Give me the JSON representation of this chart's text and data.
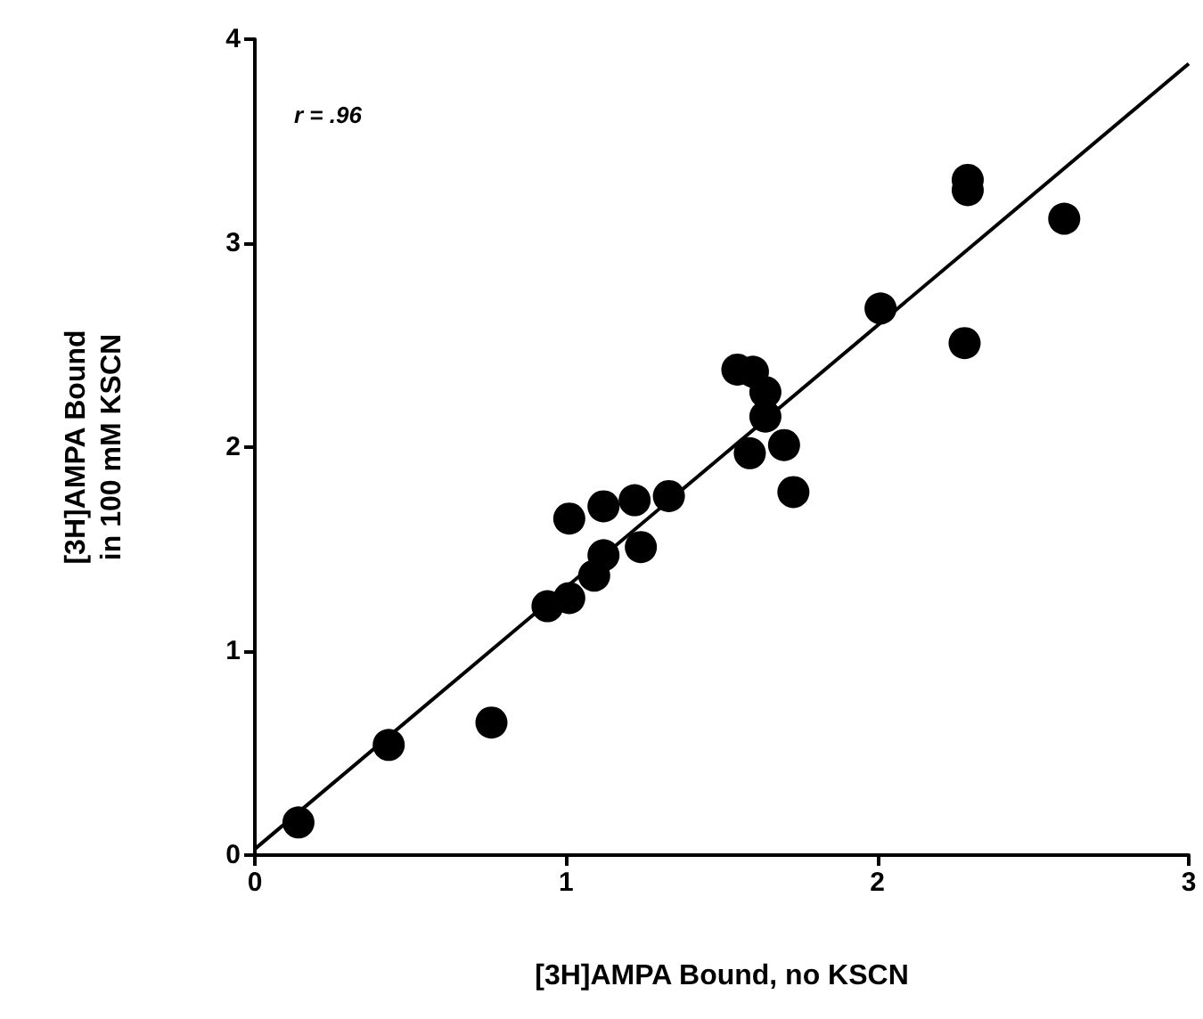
{
  "chart_data": {
    "type": "scatter",
    "xlabel": "[3H]AMPA Bound, no KSCN",
    "ylabel": "[3H]AMPA Bound\nin 100 mM KSCN",
    "annotations": [
      "r = .96"
    ],
    "series": [
      {
        "color": "#000000",
        "marker": "circle",
        "x": [
          0.14,
          0.43,
          0.76,
          0.94,
          1.01,
          1.01,
          1.09,
          1.12,
          1.12,
          1.22,
          1.24,
          1.33,
          1.55,
          1.6,
          1.64,
          1.64,
          1.59,
          1.7,
          1.73,
          2.01,
          2.29,
          2.29,
          2.28,
          2.6
        ],
        "values": [
          0.16,
          0.54,
          0.65,
          1.22,
          1.26,
          1.65,
          1.37,
          1.47,
          1.71,
          1.74,
          1.51,
          1.76,
          2.38,
          2.37,
          2.27,
          2.15,
          1.97,
          2.01,
          1.78,
          2.68,
          3.31,
          3.26,
          2.51,
          3.12
        ]
      },
      {
        "type": "line",
        "color": "#000000",
        "marker": "none",
        "x": [
          0,
          3
        ],
        "values": [
          0.03,
          3.88
        ]
      }
    ],
    "xlim": [
      0,
      3
    ],
    "xticks": [
      0,
      1,
      2,
      3
    ],
    "ylim": [
      0,
      4
    ],
    "yticks": [
      0,
      1,
      2,
      3,
      4
    ],
    "grid": false
  }
}
